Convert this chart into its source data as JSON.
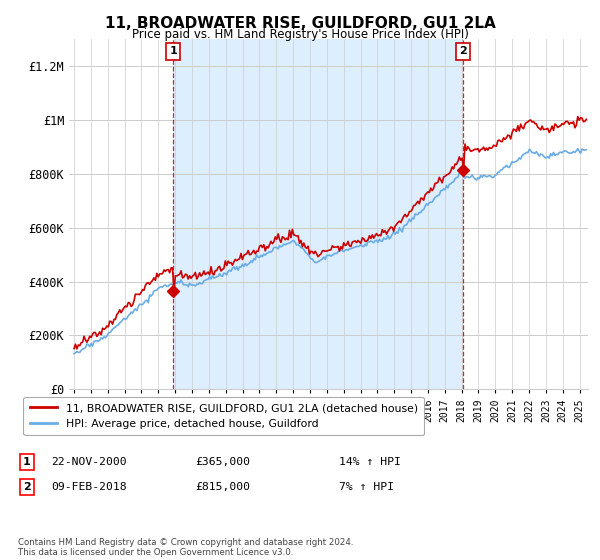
{
  "title": "11, BROADWATER RISE, GUILDFORD, GU1 2LA",
  "subtitle": "Price paid vs. HM Land Registry's House Price Index (HPI)",
  "ylim": [
    0,
    1300000
  ],
  "yticks": [
    0,
    200000,
    400000,
    600000,
    800000,
    1000000,
    1200000
  ],
  "ytick_labels": [
    "£0",
    "£200K",
    "£400K",
    "£600K",
    "£800K",
    "£1M",
    "£1.2M"
  ],
  "hpi_color": "#6aace6",
  "price_color": "#cc0000",
  "dashed_color": "#cc0000",
  "fill_color": "#ddeeff",
  "grid_color": "#cccccc",
  "bg_color": "#ffffff",
  "legend_label_red": "11, BROADWATER RISE, GUILDFORD, GU1 2LA (detached house)",
  "legend_label_blue": "HPI: Average price, detached house, Guildford",
  "sale1_date": "22-NOV-2000",
  "sale1_price": "£365,000",
  "sale1_hpi": "14% ↑ HPI",
  "sale2_date": "09-FEB-2018",
  "sale2_price": "£815,000",
  "sale2_hpi": "7% ↑ HPI",
  "footnote": "Contains HM Land Registry data © Crown copyright and database right 2024.\nThis data is licensed under the Open Government Licence v3.0.",
  "sale1_year": 2000.9,
  "sale2_year": 2018.1,
  "sale1_price_val": 365000,
  "sale2_price_val": 815000,
  "xmin": 1994.7,
  "xmax": 2025.5
}
